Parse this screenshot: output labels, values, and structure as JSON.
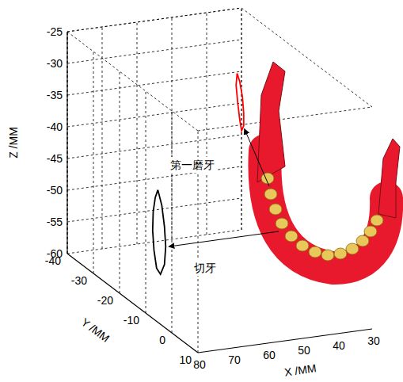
{
  "chart_data": {
    "type": "line3d",
    "xlabel": "X /MM",
    "ylabel": "Y /MM",
    "zlabel": "Z /MM",
    "xlim": [
      30,
      80
    ],
    "ylim": [
      -40,
      10
    ],
    "zlim": [
      -60,
      -25
    ],
    "xticks": [
      30,
      40,
      50,
      60,
      70,
      80
    ],
    "yticks": [
      -40,
      -30,
      -20,
      -10,
      0,
      10
    ],
    "zticks": [
      -60,
      -55,
      -50,
      -45,
      -40,
      -35,
      -30,
      -25
    ],
    "grid": true,
    "series": [
      {
        "label": "第一磨牙",
        "color": "#ff0000",
        "x": [
          50,
          50,
          50,
          50,
          50,
          50,
          50,
          50,
          50,
          50
        ],
        "y": [
          -15,
          -14,
          -13,
          -12.5,
          -12.5,
          -13.3,
          -14,
          -14.8,
          -15.4,
          -15
        ],
        "z": [
          -26,
          -27,
          -29,
          -31.5,
          -33.5,
          -34.5,
          -33,
          -30.5,
          -28,
          -26
        ]
      },
      {
        "label": "切牙",
        "color": "#000000",
        "x": [
          66,
          66,
          66,
          66,
          66,
          66,
          66,
          66,
          66,
          66,
          66,
          66
        ],
        "y": [
          -24,
          -22.5,
          -21.5,
          -21,
          -21.5,
          -23,
          -24.5,
          -25.5,
          -26,
          -25.8,
          -25,
          -24
        ],
        "z": [
          -46,
          -48,
          -51,
          -54,
          -57,
          -59,
          -58.5,
          -56,
          -53,
          -50,
          -47.5,
          -46
        ]
      }
    ]
  }
}
